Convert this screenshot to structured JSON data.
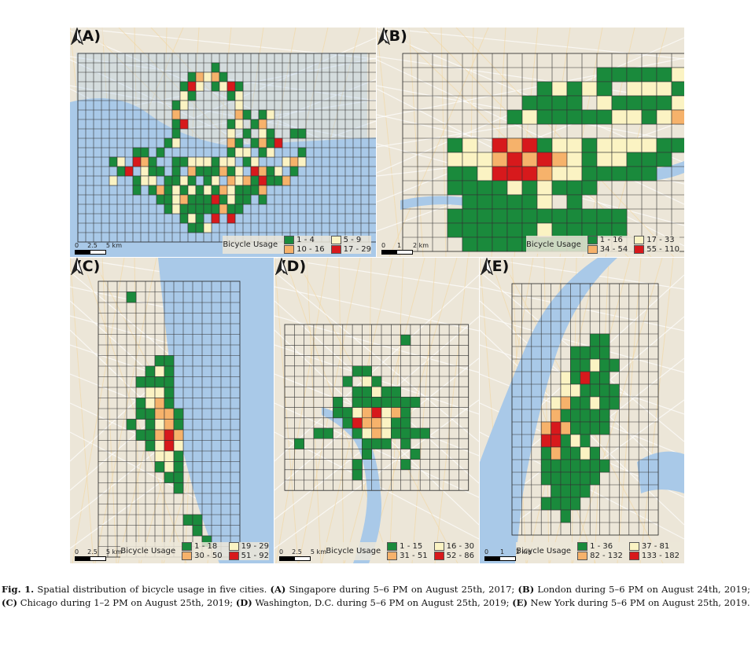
{
  "figure": {
    "caption_label": "Fig. 1.",
    "caption_parts": [
      {
        "b": "",
        "t": " Spatial distribution of bicycle usage in five cities. "
      },
      {
        "b": "(A)",
        "t": " Singapore during 5–6 PM on August 25th, 2017; "
      },
      {
        "b": "(B)",
        "t": " London during 5–6 PM on August 24th, 2019; "
      },
      {
        "b": "(C)",
        "t": " Chicago during 1–2 PM on August 25th, 2019; "
      },
      {
        "b": "(D)",
        "t": " Washington, D.C. during 5–6 PM on August 25th, 2019; "
      },
      {
        "b": "(E)",
        "t": " New York during 5–6 PM on August 25th, 2019."
      }
    ],
    "legend_title": "Bicycle Usage",
    "north_icon": "north-arrow-icon",
    "colors": {
      "c1": "#1a8a3c",
      "c2": "#fbf3c3",
      "c3": "#f6b26b",
      "c4": "#d7191c",
      "water": "#a9c9e8",
      "land": "#ece6d8"
    }
  },
  "panels": [
    {
      "id": "A",
      "label": "(A)",
      "classes": [
        "1 - 4",
        "5 - 9",
        "10 - 16",
        "17 - 29"
      ],
      "scale": [
        "0",
        "2.5",
        "5 km"
      ]
    },
    {
      "id": "B",
      "label": "(B)",
      "classes": [
        "1 - 16",
        "17 - 33",
        "34 - 54",
        "55 - 110"
      ],
      "scale": [
        "0",
        "1",
        "2 km"
      ]
    },
    {
      "id": "C",
      "label": "(C)",
      "classes": [
        "1 - 18",
        "19 - 29",
        "30 - 50",
        "51 - 92"
      ],
      "scale": [
        "0",
        "2.5",
        "5 km"
      ]
    },
    {
      "id": "D",
      "label": "(D)",
      "classes": [
        "1 - 15",
        "16 - 30",
        "31 - 51",
        "52 - 86"
      ],
      "scale": [
        "0",
        "2.5",
        "5 km"
      ]
    },
    {
      "id": "E",
      "label": "(E)",
      "classes": [
        "1 - 36",
        "37 - 81",
        "82 - 132",
        "133 - 182"
      ],
      "scale": [
        "0",
        "1",
        "2 km"
      ]
    }
  ]
}
